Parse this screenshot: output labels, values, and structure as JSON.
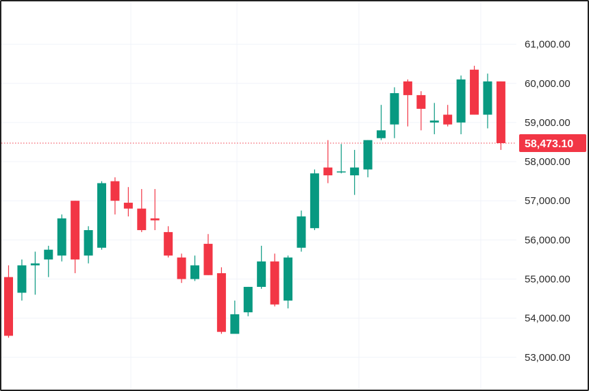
{
  "chart_data": {
    "type": "candlestick",
    "title": "",
    "xlabel": "",
    "ylabel": "",
    "ylim": [
      52700,
      61700
    ],
    "y_ticks": [
      61000,
      60000,
      59000,
      58000,
      57000,
      56000,
      55000,
      54000,
      53000
    ],
    "y_tick_labels": [
      "61,000.00",
      "60,000.00",
      "59,000.00",
      "58,000.00",
      "57,000.00",
      "56,000.00",
      "55,000.00",
      "54,000.00",
      "53,000.00"
    ],
    "grid": true,
    "axis_position": "right",
    "current_price": 58473.1,
    "current_price_label": "58,473.10",
    "colors": {
      "up": "#089981",
      "down": "#f23645",
      "grid": "#f0f3fa",
      "price_line": "#f23645"
    },
    "series": [
      {
        "candles": [
          {
            "o": 55050,
            "h": 55350,
            "l": 53500,
            "c": 53550
          },
          {
            "o": 54650,
            "h": 55500,
            "l": 54450,
            "c": 55350
          },
          {
            "o": 55350,
            "h": 55700,
            "l": 54600,
            "c": 55400
          },
          {
            "o": 55500,
            "h": 55850,
            "l": 55050,
            "c": 55750
          },
          {
            "o": 55600,
            "h": 56650,
            "l": 55450,
            "c": 56550
          },
          {
            "o": 57000,
            "h": 57000,
            "l": 55150,
            "c": 55500
          },
          {
            "o": 55600,
            "h": 56350,
            "l": 55400,
            "c": 56250
          },
          {
            "o": 55800,
            "h": 57500,
            "l": 55750,
            "c": 57450
          },
          {
            "o": 57500,
            "h": 57600,
            "l": 56650,
            "c": 57000
          },
          {
            "o": 56950,
            "h": 57350,
            "l": 56600,
            "c": 56800
          },
          {
            "o": 56800,
            "h": 57300,
            "l": 56200,
            "c": 56250
          },
          {
            "o": 56550,
            "h": 57300,
            "l": 56250,
            "c": 56500
          },
          {
            "o": 56200,
            "h": 56350,
            "l": 55550,
            "c": 55600
          },
          {
            "o": 55550,
            "h": 55650,
            "l": 54900,
            "c": 55000
          },
          {
            "o": 55000,
            "h": 55600,
            "l": 54950,
            "c": 55350
          },
          {
            "o": 55900,
            "h": 56150,
            "l": 55100,
            "c": 55100
          },
          {
            "o": 55150,
            "h": 55300,
            "l": 53600,
            "c": 53650
          },
          {
            "o": 53600,
            "h": 54450,
            "l": 53600,
            "c": 54100
          },
          {
            "o": 54150,
            "h": 54800,
            "l": 54050,
            "c": 54800
          },
          {
            "o": 54800,
            "h": 55850,
            "l": 54750,
            "c": 55450
          },
          {
            "o": 55450,
            "h": 55650,
            "l": 54300,
            "c": 54350
          },
          {
            "o": 54450,
            "h": 55600,
            "l": 54250,
            "c": 55550
          },
          {
            "o": 55800,
            "h": 56750,
            "l": 55700,
            "c": 56600
          },
          {
            "o": 56300,
            "h": 57800,
            "l": 56250,
            "c": 57700
          },
          {
            "o": 57850,
            "h": 58550,
            "l": 57450,
            "c": 57650
          },
          {
            "o": 57750,
            "h": 58450,
            "l": 57700,
            "c": 57750
          },
          {
            "o": 57650,
            "h": 58300,
            "l": 57150,
            "c": 57850
          },
          {
            "o": 57800,
            "h": 58550,
            "l": 57600,
            "c": 58550
          },
          {
            "o": 58600,
            "h": 59450,
            "l": 58550,
            "c": 58800
          },
          {
            "o": 58950,
            "h": 59900,
            "l": 58600,
            "c": 59750
          },
          {
            "o": 60050,
            "h": 60100,
            "l": 58900,
            "c": 59700
          },
          {
            "o": 59700,
            "h": 59800,
            "l": 58800,
            "c": 59350
          },
          {
            "o": 59000,
            "h": 59500,
            "l": 58700,
            "c": 59050
          },
          {
            "o": 59200,
            "h": 59450,
            "l": 58900,
            "c": 58950
          },
          {
            "o": 59000,
            "h": 60200,
            "l": 58700,
            "c": 60100
          },
          {
            "o": 60350,
            "h": 60450,
            "l": 59200,
            "c": 59200
          },
          {
            "o": 59200,
            "h": 60250,
            "l": 58850,
            "c": 60050
          },
          {
            "o": 60050,
            "h": 60050,
            "l": 58300,
            "c": 58473.1
          }
        ]
      }
    ]
  }
}
